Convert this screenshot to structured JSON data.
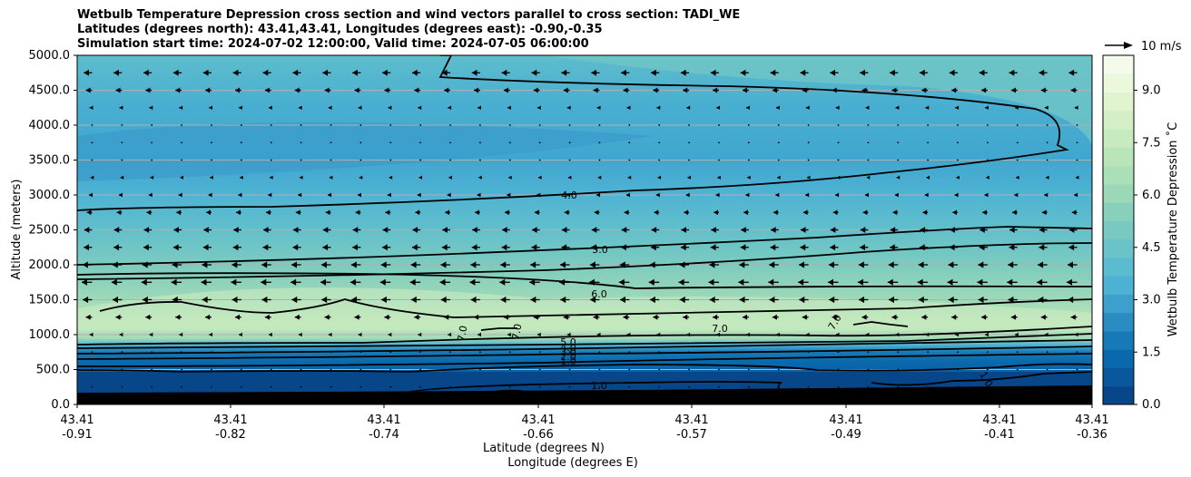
{
  "title": {
    "line1": "Wetbulb Temperature Depression cross section and wind vectors parallel to cross section: TADI_WE",
    "line2": "Latitudes (degrees north): 43.41,43.41, Longitudes (degrees east): -0.90,-0.35",
    "line3": "Simulation start time: 2024-07-02 12:00:00, Valid time: 2024-07-05 06:00:00"
  },
  "chart_data": {
    "type": "heatmap",
    "ylabel": "Altitude (meters)",
    "xlabel": "Latitude (degrees N)",
    "xlabel2": "Longitude (degrees E)",
    "ylim": [
      0,
      5000
    ],
    "yticks": [
      "0.0",
      "500.0",
      "1000.0",
      "1500.0",
      "2000.0",
      "2500.0",
      "3000.0",
      "3500.0",
      "4000.0",
      "4500.0",
      "5000.0"
    ],
    "xticks": [
      {
        "lat": "43.41",
        "lon": "-0.91"
      },
      {
        "lat": "43.41",
        "lon": "-0.82"
      },
      {
        "lat": "43.41",
        "lon": "-0.74"
      },
      {
        "lat": "43.41",
        "lon": "-0.66"
      },
      {
        "lat": "43.41",
        "lon": "-0.57"
      },
      {
        "lat": "43.41",
        "lon": "-0.49"
      },
      {
        "lat": "43.41",
        "lon": "-0.41"
      },
      {
        "lat": "43.41",
        "lon": "-0.36"
      }
    ],
    "grid": "horizontal",
    "colorbar": {
      "label": "Wetbulb Temperature Depression ˚C",
      "range": [
        0,
        10
      ],
      "ticks": [
        "0.0",
        "1.5",
        "3.0",
        "4.5",
        "6.0",
        "7.5",
        "9.0"
      ],
      "colors": [
        "#08468a",
        "#0b579e",
        "#0a68ac",
        "#177ab8",
        "#2b8cc4",
        "#3c9fcc",
        "#4cb1d3",
        "#5cbccf",
        "#69c3c9",
        "#77c9c1",
        "#88d0bb",
        "#9bd8b8",
        "#aadfb8",
        "#b9e5b9",
        "#c7eabf",
        "#d4efc6",
        "#e0f4d0",
        "#ebf8dc",
        "#f4fbeb"
      ]
    },
    "contours": [
      {
        "label": "4.0",
        "level": 4.0
      },
      {
        "label": "5.0",
        "level": 5.0
      },
      {
        "label": "6.0",
        "level": 6.0
      },
      {
        "label": "7.0",
        "level": 7.0
      },
      {
        "label": "5.0",
        "level": 5.0
      },
      {
        "label": "4.0",
        "level": 4.0
      },
      {
        "label": "3.0",
        "level": 3.0
      },
      {
        "label": "2.0",
        "level": 2.0
      },
      {
        "label": "1.0",
        "level": 1.0
      },
      {
        "label": "1.0",
        "level": 1.0
      },
      {
        "label": "7.0",
        "level": 7.0
      },
      {
        "label": "1.0",
        "level": 1.0
      },
      {
        "label": "1",
        "level": 1.0
      }
    ],
    "wind_key": {
      "label": "10 m/s",
      "speed": 10
    },
    "wind_field": {
      "description": "westward (leftward) vectors, strongest 1500-2500 m and near 4700 m",
      "speed_profile": [
        {
          "alt": 250,
          "u": 0.0
        },
        {
          "alt": 500,
          "u": 0.3
        },
        {
          "alt": 750,
          "u": -0.5
        },
        {
          "alt": 1000,
          "u": -1.2
        },
        {
          "alt": 1250,
          "u": -3.0
        },
        {
          "alt": 1500,
          "u": -4.5
        },
        {
          "alt": 1750,
          "u": -5.0
        },
        {
          "alt": 2000,
          "u": -4.6
        },
        {
          "alt": 2250,
          "u": -4.0
        },
        {
          "alt": 2500,
          "u": -3.8
        },
        {
          "alt": 2750,
          "u": -2.5
        },
        {
          "alt": 3000,
          "u": -1.5
        },
        {
          "alt": 3250,
          "u": -0.7
        },
        {
          "alt": 3500,
          "u": -0.3
        },
        {
          "alt": 3750,
          "u": -0.3
        },
        {
          "alt": 4000,
          "u": -0.5
        },
        {
          "alt": 4250,
          "u": -1.2
        },
        {
          "alt": 4500,
          "u": -3.0
        },
        {
          "alt": 4750,
          "u": -4.0
        }
      ]
    }
  }
}
